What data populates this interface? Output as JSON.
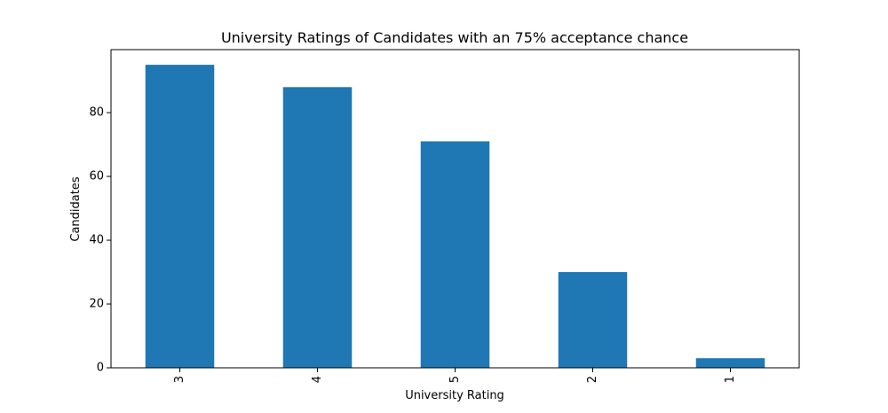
{
  "chart_data": {
    "type": "bar",
    "title": "University Ratings of Candidates with an 75% acceptance chance",
    "xlabel": "University Rating",
    "ylabel": "Candidates",
    "categories": [
      "3",
      "4",
      "5",
      "2",
      "1"
    ],
    "values": [
      95,
      88,
      71,
      30,
      3
    ],
    "ylim": [
      0,
      99.75
    ],
    "yticks": [
      0,
      20,
      40,
      60,
      80
    ],
    "ytick_labels": [
      "0",
      "20",
      "40",
      "60",
      "80"
    ],
    "x_tick_rotation": 90,
    "color": "#1f77b4",
    "grid": false,
    "legend": "none"
  }
}
